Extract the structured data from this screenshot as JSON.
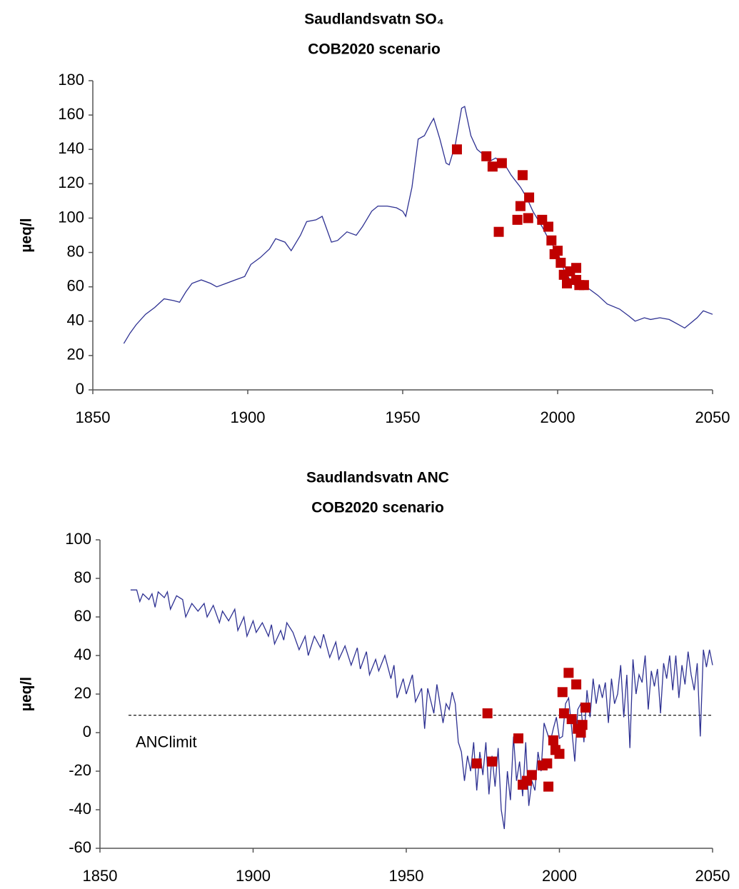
{
  "chart_data": [
    {
      "type": "line",
      "title": "Saudlandsvatn SO₄",
      "subtitle": "COB2020 scenario",
      "ylabel": "µeq/l",
      "xlim": [
        1850,
        2050
      ],
      "xticks": [
        1850,
        1900,
        1950,
        2000,
        2050
      ],
      "ylim": [
        0,
        180
      ],
      "yticks": [
        0,
        20,
        40,
        60,
        80,
        100,
        120,
        140,
        160,
        180
      ],
      "series": [
        {
          "type": "line",
          "color": "#2e3192",
          "x": [
            1860,
            1862,
            1864,
            1867,
            1870,
            1873,
            1876,
            1878,
            1880,
            1882,
            1885,
            1888,
            1890,
            1893,
            1896,
            1899,
            1901,
            1904,
            1907,
            1909,
            1912,
            1914,
            1917,
            1919,
            1922,
            1924,
            1927,
            1929,
            1932,
            1935,
            1937,
            1940,
            1942,
            1945,
            1948,
            1950,
            1951,
            1953,
            1955,
            1957,
            1959,
            1960,
            1962,
            1964,
            1965,
            1967,
            1969,
            1970,
            1972,
            1974,
            1976,
            1978,
            1980,
            1983,
            1985,
            1988,
            1990,
            1992,
            1995,
            1997,
            2000,
            2002,
            2004,
            2006,
            2008,
            2010,
            2013,
            2016,
            2020,
            2023,
            2025,
            2028,
            2030,
            2033,
            2036,
            2039,
            2041,
            2043,
            2045,
            2047,
            2050
          ],
          "values": [
            27,
            33,
            38,
            44,
            48,
            53,
            52,
            51,
            57,
            62,
            64,
            62,
            60,
            62,
            64,
            66,
            73,
            77,
            82,
            88,
            86,
            81,
            90,
            98,
            99,
            101,
            86,
            87,
            92,
            90,
            95,
            104,
            107,
            107,
            106,
            104,
            101,
            118,
            146,
            148,
            155,
            158,
            146,
            132,
            131,
            143,
            164,
            165,
            148,
            140,
            137,
            133,
            135,
            131,
            125,
            118,
            112,
            104,
            95,
            88,
            80,
            70,
            64,
            60,
            62,
            59,
            55,
            50,
            47,
            43,
            40,
            42,
            41,
            42,
            41,
            38,
            36,
            39,
            42,
            46,
            44
          ]
        },
        {
          "type": "scatter",
          "marker": "square",
          "color": "#c00000",
          "x": [
            1967.5,
            1977,
            1979,
            1982,
            1981,
            1988.7,
            1988,
            1987,
            1990.5,
            1990.8,
            1995,
            1997,
            1998,
            1999,
            2000,
            2001,
            2002,
            2003,
            2004,
            2006,
            2006,
            2007,
            2008.5
          ],
          "values": [
            140,
            136,
            130,
            132,
            92,
            125,
            107,
            99,
            100,
            112,
            99,
            95,
            87,
            79,
            81,
            74,
            67,
            62,
            69,
            71,
            64,
            61,
            61
          ]
        }
      ]
    },
    {
      "type": "line",
      "title": "Saudlandsvatn ANC",
      "subtitle": "COB2020 scenario",
      "ylabel": "µeq/l",
      "xlim": [
        1850,
        2050
      ],
      "xticks": [
        1850,
        1900,
        1950,
        2000,
        2050
      ],
      "ylim": [
        -60,
        100
      ],
      "yticks": [
        -60,
        -40,
        -20,
        0,
        20,
        40,
        60,
        80,
        100
      ],
      "reference_line": {
        "y": 9,
        "label": "ANClimit"
      },
      "series": [
        {
          "type": "line",
          "color": "#2e3192",
          "x": [
            1860,
            1862,
            1863,
            1864,
            1866,
            1867,
            1868,
            1869,
            1871,
            1872,
            1873,
            1875,
            1877,
            1878,
            1880,
            1882,
            1884,
            1885,
            1887,
            1889,
            1890,
            1892,
            1894,
            1895,
            1897,
            1898,
            1900,
            1901,
            1903,
            1905,
            1906,
            1907,
            1909,
            1910,
            1911,
            1913,
            1915,
            1917,
            1918,
            1920,
            1922,
            1923,
            1925,
            1927,
            1928,
            1930,
            1932,
            1934,
            1935,
            1937,
            1938,
            1940,
            1941,
            1943,
            1945,
            1946,
            1947,
            1949,
            1950,
            1952,
            1953,
            1955,
            1956,
            1957,
            1959,
            1960,
            1962,
            1963,
            1964,
            1965,
            1966,
            1967,
            1968,
            1969,
            1970,
            1971,
            1972,
            1973,
            1974,
            1975,
            1976,
            1977,
            1978,
            1979,
            1980,
            1981,
            1982,
            1983,
            1984,
            1985,
            1986,
            1987,
            1988,
            1989,
            1990,
            1991,
            1992,
            1993,
            1994,
            1995,
            1996,
            1997,
            1998,
            1999,
            2000,
            2001,
            2002,
            2003,
            2004,
            2005,
            2006,
            2007,
            2008,
            2009,
            2010,
            2011,
            2012,
            2013,
            2014,
            2015,
            2016,
            2017,
            2018,
            2019,
            2020,
            2021,
            2022,
            2023,
            2024,
            2025,
            2026,
            2027,
            2028,
            2029,
            2030,
            2031,
            2032,
            2033,
            2034,
            2035,
            2036,
            2037,
            2038,
            2039,
            2040,
            2041,
            2042,
            2043,
            2044,
            2045,
            2046,
            2047,
            2048,
            2049,
            2050
          ],
          "values": [
            74,
            74,
            68,
            72,
            69,
            72,
            65,
            73,
            70,
            73,
            64,
            71,
            69,
            60,
            67,
            63,
            67,
            60,
            66,
            57,
            63,
            58,
            64,
            53,
            60,
            50,
            58,
            52,
            57,
            50,
            56,
            46,
            53,
            48,
            57,
            52,
            43,
            50,
            40,
            50,
            44,
            51,
            39,
            47,
            38,
            45,
            35,
            44,
            33,
            42,
            30,
            38,
            32,
            40,
            28,
            35,
            18,
            28,
            20,
            30,
            16,
            23,
            2,
            23,
            10,
            25,
            5,
            15,
            12,
            21,
            15,
            -5,
            -10,
            -25,
            -12,
            -20,
            -5,
            -30,
            -10,
            -22,
            -5,
            -32,
            -12,
            -28,
            -8,
            -40,
            -50,
            -20,
            -35,
            -2,
            -25,
            -15,
            -33,
            -5,
            -38,
            -25,
            -30,
            -10,
            -20,
            5,
            0,
            -5,
            2,
            8,
            -3,
            -2,
            15,
            18,
            2,
            -15,
            12,
            15,
            -5,
            22,
            8,
            28,
            15,
            25,
            18,
            26,
            5,
            28,
            15,
            20,
            35,
            8,
            30,
            -8,
            38,
            20,
            30,
            26,
            40,
            12,
            32,
            24,
            33,
            10,
            36,
            28,
            40,
            22,
            40,
            18,
            35,
            25,
            42,
            30,
            22,
            36,
            -2,
            43,
            34,
            43,
            35
          ]
        },
        {
          "type": "scatter",
          "marker": "square",
          "color": "#c00000",
          "x": [
            1973,
            1976.5,
            1978,
            1986.6,
            1988,
            1989.4,
            1991,
            1994.5,
            1996,
            1996.4,
            1998,
            1998.7,
            2000,
            2001,
            2001.5,
            2003,
            2004,
            2005.5,
            2006,
            2007,
            2007.5,
            2008.5
          ],
          "values": [
            -16,
            10,
            -15,
            -3,
            -27,
            -25,
            -22,
            -17,
            -16,
            -28,
            -4,
            -9,
            -11,
            21,
            10,
            31,
            7,
            25,
            2,
            0,
            4,
            13
          ]
        }
      ]
    }
  ]
}
